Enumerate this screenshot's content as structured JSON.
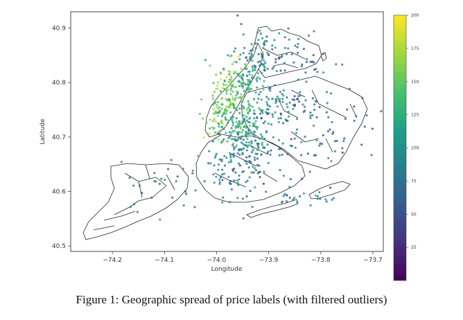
{
  "caption": "Figure 1: Geographic spread of price labels (with filtered outliers)",
  "chart_data": {
    "type": "scatter",
    "xlabel": "Longitude",
    "ylabel": "Latitude",
    "xlim": [
      -74.28,
      -73.68
    ],
    "ylim": [
      40.49,
      40.93
    ],
    "xticks": [
      {
        "value": -74.2,
        "label": "−74.2"
      },
      {
        "value": -74.1,
        "label": "−74.1"
      },
      {
        "value": -74.0,
        "label": "−74.0"
      },
      {
        "value": -73.9,
        "label": "−73.9"
      },
      {
        "value": -73.8,
        "label": "−73.8"
      },
      {
        "value": -73.7,
        "label": "−73.7"
      }
    ],
    "yticks": [
      {
        "value": 40.5,
        "label": "40.5"
      },
      {
        "value": 40.6,
        "label": "40.6"
      },
      {
        "value": 40.7,
        "label": "40.7"
      },
      {
        "value": 40.8,
        "label": "40.8"
      },
      {
        "value": 40.9,
        "label": "40.9"
      }
    ],
    "colorbar": {
      "colormap": "viridis",
      "range": [
        0,
        200
      ],
      "ticks": [
        25,
        50,
        75,
        100,
        125,
        150,
        175,
        200
      ],
      "colors": [
        "#440154",
        "#46327e",
        "#365c8d",
        "#277f8e",
        "#1fa187",
        "#4ac16d",
        "#a0da39",
        "#fde725"
      ]
    },
    "background_regions": "neighborhood boundary outlines",
    "clusters": [
      {
        "lon": -73.975,
        "lat": 40.78,
        "spread_lon": 0.02,
        "spread_lat": 0.03,
        "price": 160,
        "count": 110
      },
      {
        "lon": -73.995,
        "lat": 40.735,
        "spread_lon": 0.015,
        "spread_lat": 0.02,
        "price": 150,
        "count": 70
      },
      {
        "lon": -73.945,
        "lat": 40.805,
        "spread_lon": 0.018,
        "spread_lat": 0.02,
        "price": 120,
        "count": 70
      },
      {
        "lon": -73.92,
        "lat": 40.85,
        "spread_lon": 0.025,
        "spread_lat": 0.025,
        "price": 90,
        "count": 60
      },
      {
        "lon": -73.95,
        "lat": 40.71,
        "spread_lon": 0.02,
        "spread_lat": 0.015,
        "price": 120,
        "count": 70
      },
      {
        "lon": -73.94,
        "lat": 40.68,
        "spread_lon": 0.03,
        "spread_lat": 0.02,
        "price": 85,
        "count": 100
      },
      {
        "lon": -73.93,
        "lat": 40.74,
        "spread_lon": 0.025,
        "spread_lat": 0.015,
        "price": 110,
        "count": 60
      },
      {
        "lon": -73.87,
        "lat": 40.76,
        "spread_lon": 0.04,
        "spread_lat": 0.02,
        "price": 75,
        "count": 70
      },
      {
        "lon": -73.88,
        "lat": 40.85,
        "spread_lon": 0.04,
        "spread_lat": 0.03,
        "price": 70,
        "count": 60
      },
      {
        "lon": -73.79,
        "lat": 40.71,
        "spread_lon": 0.05,
        "spread_lat": 0.04,
        "price": 70,
        "count": 70
      },
      {
        "lon": -73.96,
        "lat": 40.63,
        "spread_lon": 0.035,
        "spread_lat": 0.025,
        "price": 75,
        "count": 70
      },
      {
        "lon": -73.84,
        "lat": 40.59,
        "spread_lon": 0.03,
        "spread_lat": 0.008,
        "price": 90,
        "count": 25
      },
      {
        "lon": -74.1,
        "lat": 40.61,
        "spread_lon": 0.04,
        "spread_lat": 0.03,
        "price": 75,
        "count": 30
      }
    ]
  }
}
